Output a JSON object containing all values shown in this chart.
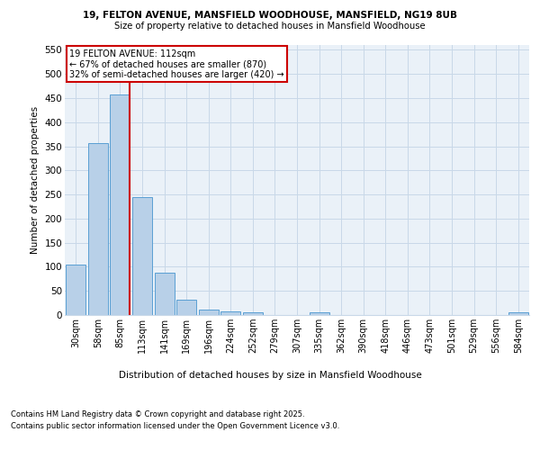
{
  "title_line1": "19, FELTON AVENUE, MANSFIELD WOODHOUSE, MANSFIELD, NG19 8UB",
  "title_line2": "Size of property relative to detached houses in Mansfield Woodhouse",
  "xlabel": "Distribution of detached houses by size in Mansfield Woodhouse",
  "ylabel": "Number of detached properties",
  "categories": [
    "30sqm",
    "58sqm",
    "85sqm",
    "113sqm",
    "141sqm",
    "169sqm",
    "196sqm",
    "224sqm",
    "252sqm",
    "279sqm",
    "307sqm",
    "335sqm",
    "362sqm",
    "390sqm",
    "418sqm",
    "446sqm",
    "473sqm",
    "501sqm",
    "529sqm",
    "556sqm",
    "584sqm"
  ],
  "values": [
    105,
    357,
    457,
    245,
    88,
    32,
    12,
    8,
    5,
    0,
    0,
    5,
    0,
    0,
    0,
    0,
    0,
    0,
    0,
    0,
    5
  ],
  "bar_color": "#b8d0e8",
  "bar_edge_color": "#5a9fd4",
  "grid_color": "#c8d8e8",
  "bg_color": "#eaf1f8",
  "annotation_line1": "19 FELTON AVENUE: 112sqm",
  "annotation_line2": "← 67% of detached houses are smaller (870)",
  "annotation_line3": "32% of semi-detached houses are larger (420) →",
  "annotation_box_color": "#ffffff",
  "annotation_box_edge_color": "#cc0000",
  "marker_line_color": "#cc0000",
  "ylim": [
    0,
    560
  ],
  "yticks": [
    0,
    50,
    100,
    150,
    200,
    250,
    300,
    350,
    400,
    450,
    500,
    550
  ],
  "footer_line1": "Contains HM Land Registry data © Crown copyright and database right 2025.",
  "footer_line2": "Contains public sector information licensed under the Open Government Licence v3.0."
}
